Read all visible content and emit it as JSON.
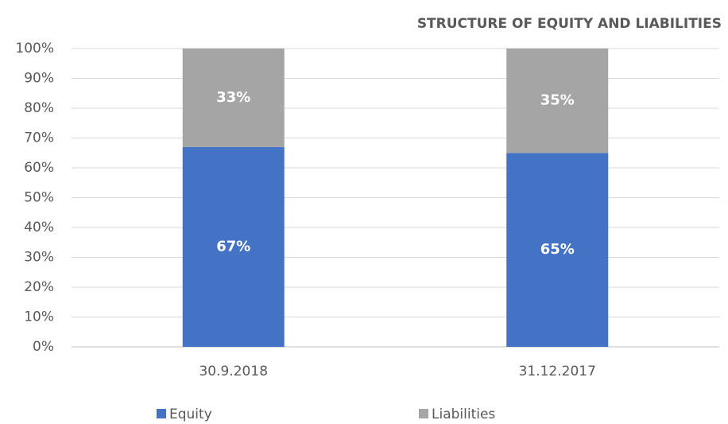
{
  "chart_data": {
    "type": "bar",
    "stacked": true,
    "title": "STRUCTURE OF EQUITY AND LIABILITIES",
    "categories": [
      "30.9.2018",
      "31.12.2017"
    ],
    "series": [
      {
        "name": "Equity",
        "color": "#4472c4",
        "values": [
          67,
          65
        ],
        "value_labels": [
          "67%",
          "65%"
        ]
      },
      {
        "name": "Liabilities",
        "color": "#a5a5a5",
        "values": [
          33,
          35
        ],
        "value_labels": [
          "33%",
          "35%"
        ]
      }
    ],
    "ylim": [
      0,
      100
    ],
    "yticks": [
      {
        "value": 0,
        "label": "0%"
      },
      {
        "value": 10,
        "label": "10%"
      },
      {
        "value": 20,
        "label": "20%"
      },
      {
        "value": 30,
        "label": "30%"
      },
      {
        "value": 40,
        "label": "40%"
      },
      {
        "value": 50,
        "label": "50%"
      },
      {
        "value": 60,
        "label": "60%"
      },
      {
        "value": 70,
        "label": "70%"
      },
      {
        "value": 80,
        "label": "80%"
      },
      {
        "value": 90,
        "label": "90%"
      },
      {
        "value": 100,
        "label": "100%"
      }
    ],
    "grid": true,
    "legend": "bottom"
  }
}
